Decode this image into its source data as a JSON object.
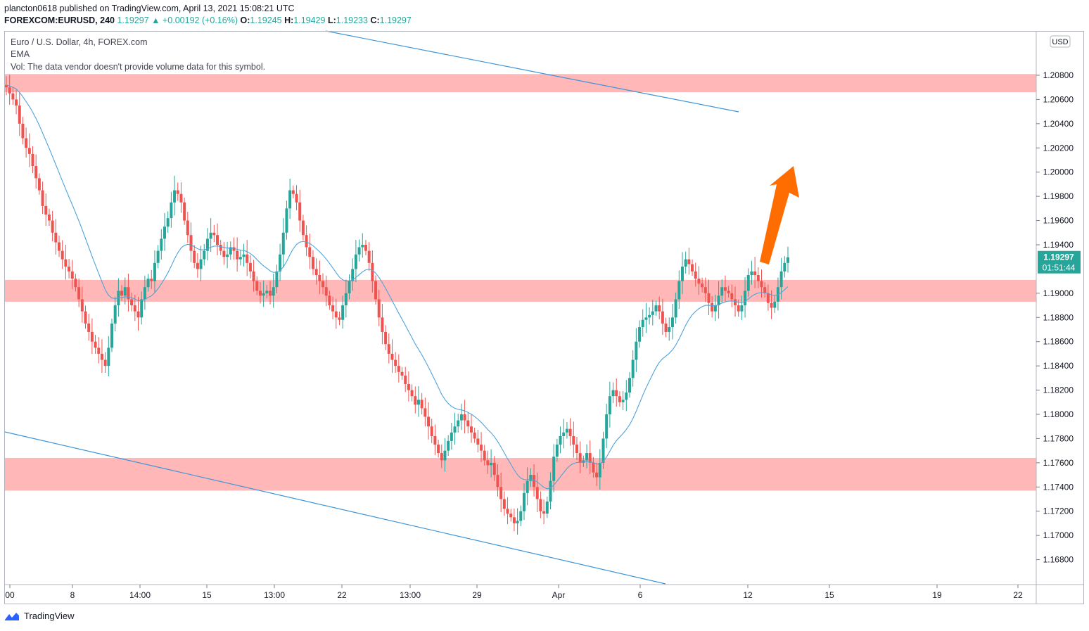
{
  "header": {
    "publisher_line": "plancton0618 published on TradingView.com, April 13, 2021 15:08:21 UTC",
    "symbol": "FOREXCOM:EURUSD, 240",
    "last": "1.19297",
    "change_arrow": "▲",
    "change": "+0.00192 (+0.16%)",
    "o_label": "O:",
    "o_value": "1.19245",
    "h_label": "H:",
    "h_value": "1.19429",
    "l_label": "L:",
    "l_value": "1.19233",
    "c_label": "C:",
    "c_value": "1.19297"
  },
  "legend": {
    "title": "Euro / U.S. Dollar, 4h, FOREX.com",
    "indicator": "EMA",
    "volume_note": "Vol: The data vendor doesn't provide volume data for this symbol."
  },
  "price_axis": {
    "currency_badge": "USD",
    "ticks": [
      "1.20800",
      "1.20600",
      "1.20400",
      "1.20200",
      "1.20000",
      "1.19800",
      "1.19600",
      "1.19400",
      "1.19000",
      "1.18800",
      "1.18600",
      "1.18400",
      "1.18200",
      "1.18000",
      "1.17800",
      "1.17600",
      "1.17400",
      "1.17200",
      "1.17000",
      "1.16800"
    ],
    "current_price_label": "1.19297",
    "countdown_label": "01:51:44"
  },
  "time_axis": {
    "labels": [
      "00",
      "8",
      "14:00",
      "15",
      "13:00",
      "22",
      "13:00",
      "29",
      "Apr",
      "6",
      "12",
      "15",
      "19",
      "22"
    ]
  },
  "footer": {
    "brand": "TradingView"
  },
  "colors": {
    "up": "#26a69a",
    "down": "#ef5350",
    "zone": "#ffb3b3",
    "ema": "#4ea3dc",
    "trendline": "#3d95d8",
    "arrow": "#ff6d00",
    "price_tag": "#26a69a"
  },
  "chart_data": {
    "type": "candlestick",
    "title": "Euro / U.S. Dollar, 4h, FOREX.com",
    "y_range": [
      1.166,
      1.2116
    ],
    "zones": [
      {
        "from": 1.2066,
        "to": 1.2081
      },
      {
        "from": 1.1893,
        "to": 1.1911
      },
      {
        "from": 1.1737,
        "to": 1.1764
      }
    ],
    "indicators": [
      "EMA"
    ],
    "x_labels": [
      "00",
      "8",
      "14:00",
      "15",
      "13:00",
      "22",
      "13:00",
      "29",
      "Apr",
      "6",
      "12",
      "15",
      "19",
      "22"
    ],
    "close_path": [
      1.2072,
      1.207,
      1.2065,
      1.206,
      1.2055,
      1.204,
      1.2028,
      1.202,
      1.2015,
      1.2005,
      1.1995,
      1.1985,
      1.1972,
      1.1965,
      1.196,
      1.195,
      1.1942,
      1.1935,
      1.1928,
      1.1922,
      1.1918,
      1.1912,
      1.1905,
      1.1895,
      1.1885,
      1.1875,
      1.1868,
      1.186,
      1.1855,
      1.185,
      1.1845,
      1.184,
      1.1855,
      1.1875,
      1.189,
      1.1902,
      1.1898,
      1.1905,
      1.1895,
      1.189,
      1.1885,
      1.188,
      1.1895,
      1.1905,
      1.1912,
      1.191,
      1.1925,
      1.1935,
      1.1945,
      1.1955,
      1.1962,
      1.1975,
      1.1985,
      1.1982,
      1.1975,
      1.196,
      1.1948,
      1.1935,
      1.1925,
      1.192,
      1.1928,
      1.1935,
      1.1945,
      1.195,
      1.1948,
      1.194,
      1.1935,
      1.193,
      1.1932,
      1.1938,
      1.1935,
      1.1928,
      1.193,
      1.1932,
      1.1925,
      1.1918,
      1.191,
      1.1902,
      1.1898,
      1.19,
      1.1902,
      1.1898,
      1.1905,
      1.1918,
      1.1932,
      1.195,
      1.197,
      1.1985,
      1.1982,
      1.1975,
      1.196,
      1.1948,
      1.1938,
      1.193,
      1.192,
      1.1915,
      1.191,
      1.1905,
      1.1898,
      1.189,
      1.1885,
      1.188,
      1.1878,
      1.189,
      1.19,
      1.191,
      1.192,
      1.1932,
      1.1938,
      1.194,
      1.1935,
      1.1925,
      1.191,
      1.1895,
      1.188,
      1.1868,
      1.1858,
      1.185,
      1.1845,
      1.184,
      1.1835,
      1.1832,
      1.1825,
      1.182,
      1.1815,
      1.1808,
      1.1812,
      1.1805,
      1.1798,
      1.179,
      1.1782,
      1.1775,
      1.1768,
      1.1762,
      1.177,
      1.1778,
      1.1785,
      1.179,
      1.1795,
      1.18,
      1.1795,
      1.179,
      1.1785,
      1.178,
      1.1775,
      1.177,
      1.1762,
      1.1758,
      1.176,
      1.175,
      1.174,
      1.173,
      1.1722,
      1.1718,
      1.1715,
      1.171,
      1.1712,
      1.172,
      1.1735,
      1.1745,
      1.175,
      1.174,
      1.173,
      1.172,
      1.1718,
      1.1728,
      1.1745,
      1.1765,
      1.1775,
      1.1782,
      1.1785,
      1.1788,
      1.1782,
      1.1775,
      1.1768,
      1.176,
      1.1762,
      1.1768,
      1.176,
      1.1752,
      1.1748,
      1.176,
      1.178,
      1.18,
      1.1815,
      1.182,
      1.1815,
      1.181,
      1.1812,
      1.1818,
      1.183,
      1.1845,
      1.186,
      1.1872,
      1.1878,
      1.188,
      1.1882,
      1.1885,
      1.189,
      1.1885,
      1.1875,
      1.1868,
      1.1872,
      1.188,
      1.1895,
      1.191,
      1.1922,
      1.1928,
      1.1924,
      1.1918,
      1.1912,
      1.1908,
      1.1905,
      1.19,
      1.1892,
      1.1885,
      1.189,
      1.1898,
      1.1905,
      1.1902,
      1.19,
      1.1895,
      1.189,
      1.1885,
      1.189,
      1.1902,
      1.1915,
      1.1918,
      1.1915,
      1.191,
      1.1905,
      1.19,
      1.1892,
      1.1888,
      1.1893,
      1.1905,
      1.1918,
      1.1925,
      1.19297
    ]
  }
}
